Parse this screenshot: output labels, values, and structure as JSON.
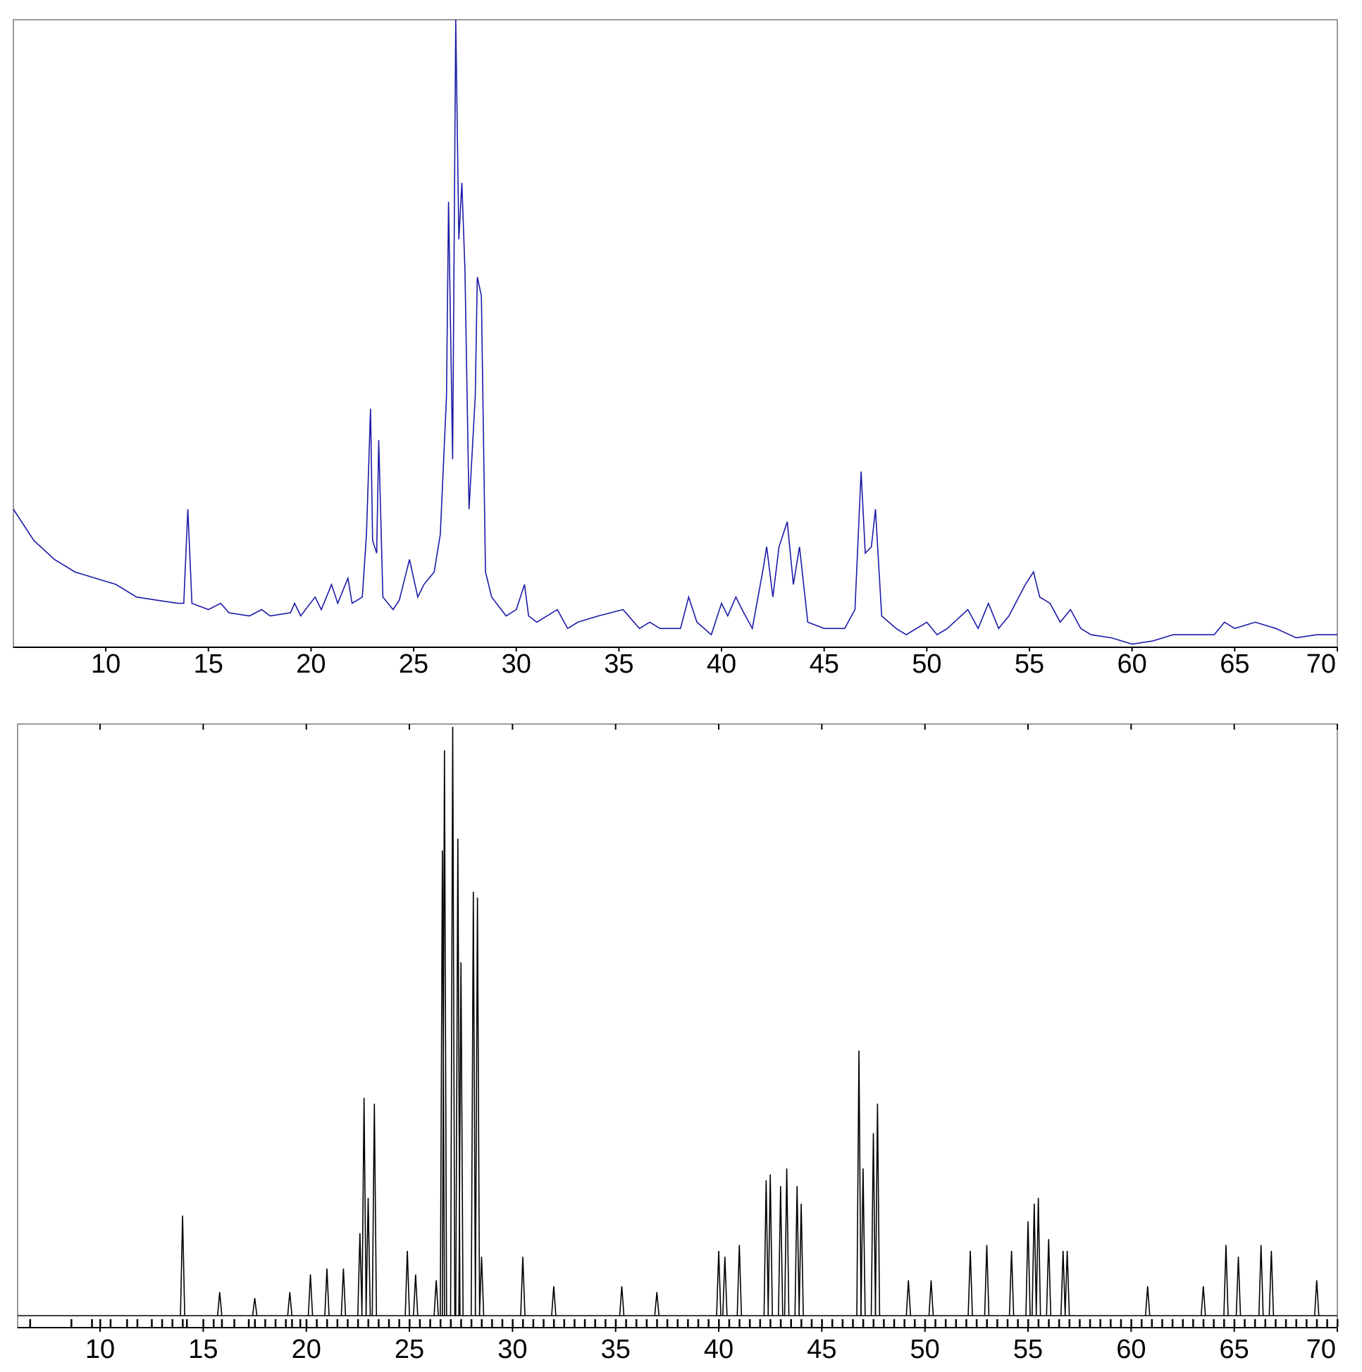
{
  "chart_data": [
    {
      "type": "line",
      "color": "#1a1aa8",
      "xlim": [
        5.5,
        70
      ],
      "ylim": [
        0,
        100
      ],
      "xticks": [
        10,
        15,
        20,
        25,
        30,
        35,
        40,
        45,
        50,
        55,
        60,
        65,
        70
      ],
      "x": [
        5.5,
        6.5,
        7.5,
        8.5,
        9.5,
        10.5,
        11.5,
        12.5,
        13.5,
        13.8,
        14.0,
        14.2,
        15,
        15.6,
        16,
        17,
        17.6,
        18,
        19,
        19.2,
        19.5,
        20.2,
        20.5,
        21,
        21.3,
        21.8,
        22,
        22.5,
        22.7,
        22.9,
        23.0,
        23.2,
        23.3,
        23.5,
        24,
        24.3,
        24.8,
        25.2,
        25.5,
        26,
        26.3,
        26.6,
        26.7,
        26.9,
        27.05,
        27.2,
        27.35,
        27.5,
        27.7,
        28.0,
        28.1,
        28.3,
        28.5,
        28.8,
        29.5,
        30,
        30.4,
        30.6,
        31,
        32,
        32.5,
        33,
        34,
        35.2,
        36,
        36.5,
        37,
        38,
        38.4,
        38.8,
        39.5,
        40,
        40.3,
        40.7,
        41,
        41.5,
        42,
        42.2,
        42.5,
        42.8,
        43.2,
        43.5,
        43.8,
        44.2,
        45,
        46,
        46.5,
        46.8,
        47.0,
        47.3,
        47.5,
        47.8,
        48.5,
        49,
        50,
        50.5,
        51,
        52,
        52.5,
        53,
        53.5,
        54,
        54.8,
        55.2,
        55.5,
        56,
        56.5,
        57,
        57.5,
        58,
        59,
        60,
        61,
        62,
        63,
        64,
        64.5,
        65,
        66,
        67,
        68,
        69,
        70
      ],
      "values": [
        22,
        17,
        14,
        12,
        11,
        10,
        8,
        7.5,
        7,
        7,
        22,
        7,
        6,
        7,
        5.5,
        5,
        6,
        5,
        5.5,
        7,
        5,
        8,
        6,
        10,
        7,
        11,
        7,
        8,
        18,
        38,
        17,
        15,
        33,
        8,
        6,
        7.5,
        14,
        8,
        10,
        12,
        18,
        40,
        71,
        30,
        100,
        65,
        74,
        60,
        22,
        40,
        59,
        56,
        12,
        8,
        5,
        6,
        10,
        5,
        4,
        6,
        3,
        4,
        5,
        6,
        3,
        4,
        3,
        3,
        8,
        4,
        2,
        7,
        5,
        8,
        6,
        3,
        12,
        16,
        8,
        16,
        20,
        10,
        16,
        4,
        3,
        3,
        6,
        28,
        15,
        16,
        22,
        5,
        3,
        2,
        4,
        2,
        3,
        6,
        3,
        7,
        3,
        5,
        10,
        12,
        8,
        7,
        4,
        6,
        3,
        2,
        1.5,
        0.5,
        1,
        2,
        2,
        2,
        4,
        3,
        4,
        3,
        1.5,
        2,
        2
      ]
    },
    {
      "type": "peaks",
      "color": "#000000",
      "xlim": [
        6,
        70
      ],
      "ylim": [
        0,
        100
      ],
      "xticks": [
        10,
        15,
        20,
        25,
        30,
        35,
        40,
        45,
        50,
        55,
        60,
        65,
        70
      ],
      "x": [
        14,
        15.8,
        17.5,
        19.2,
        20.2,
        21,
        21.8,
        22.6,
        22.8,
        23.0,
        23.3,
        24.9,
        25.3,
        26.3,
        26.6,
        26.7,
        27.1,
        27.35,
        27.5,
        28.1,
        28.3,
        28.5,
        30.5,
        32,
        35.3,
        37,
        40,
        40.3,
        41,
        42.3,
        42.5,
        43,
        43.3,
        43.8,
        44.0,
        46.8,
        47.0,
        47.5,
        47.7,
        49.2,
        50.3,
        52.2,
        53,
        54.2,
        55.0,
        55.3,
        55.5,
        56,
        56.7,
        56.9,
        60.8,
        63.5,
        64.6,
        65.2,
        66.3,
        66.8,
        69
      ],
      "values": [
        17,
        4,
        3,
        4,
        7,
        8,
        8,
        14,
        37,
        20,
        36,
        11,
        7,
        6,
        79,
        96,
        100,
        81,
        60,
        72,
        71,
        10,
        10,
        5,
        5,
        4,
        11,
        10,
        12,
        23,
        24,
        22,
        25,
        22,
        19,
        45,
        25,
        31,
        36,
        6,
        6,
        11,
        12,
        11,
        16,
        19,
        20,
        13,
        11,
        11,
        5,
        5,
        12,
        10,
        12,
        11,
        6
      ],
      "reflections": [
        6.6,
        8.6,
        9.6,
        10,
        10.5,
        11.3,
        11.8,
        12.5,
        13,
        13.5,
        14,
        14.2,
        15,
        15.5,
        15.9,
        16.5,
        17.2,
        17.5,
        18,
        18.5,
        19,
        19.3,
        19.7,
        20,
        20.5,
        21,
        21.5,
        22,
        22.5,
        23,
        23.5,
        24,
        24.5,
        25,
        25.5,
        26,
        26.5,
        27,
        27.5,
        28,
        28.5,
        29,
        29.5,
        30,
        30.5,
        31,
        31.5,
        32,
        32.5,
        33,
        33.5,
        34,
        34.5,
        35,
        35.5,
        36,
        36.5,
        37,
        37.5,
        38,
        38.5,
        39,
        39.5,
        40,
        40.5,
        41,
        41.5,
        42,
        42.5,
        43,
        43.5,
        44,
        44.5,
        45,
        45.5,
        46,
        46.5,
        47,
        47.5,
        48,
        48.5,
        49,
        49.5,
        50,
        50.5,
        51,
        51.5,
        52,
        52.5,
        53,
        53.5,
        54,
        54.5,
        55,
        55.5,
        56,
        56.5,
        57,
        57.5,
        58,
        58.5,
        59,
        59.5,
        60,
        60.5,
        61,
        61.5,
        62,
        62.5,
        63,
        63.5,
        64,
        64.5,
        65,
        65.5,
        66,
        66.5,
        67,
        67.5,
        68,
        68.5,
        69,
        69.5,
        70
      ]
    }
  ]
}
